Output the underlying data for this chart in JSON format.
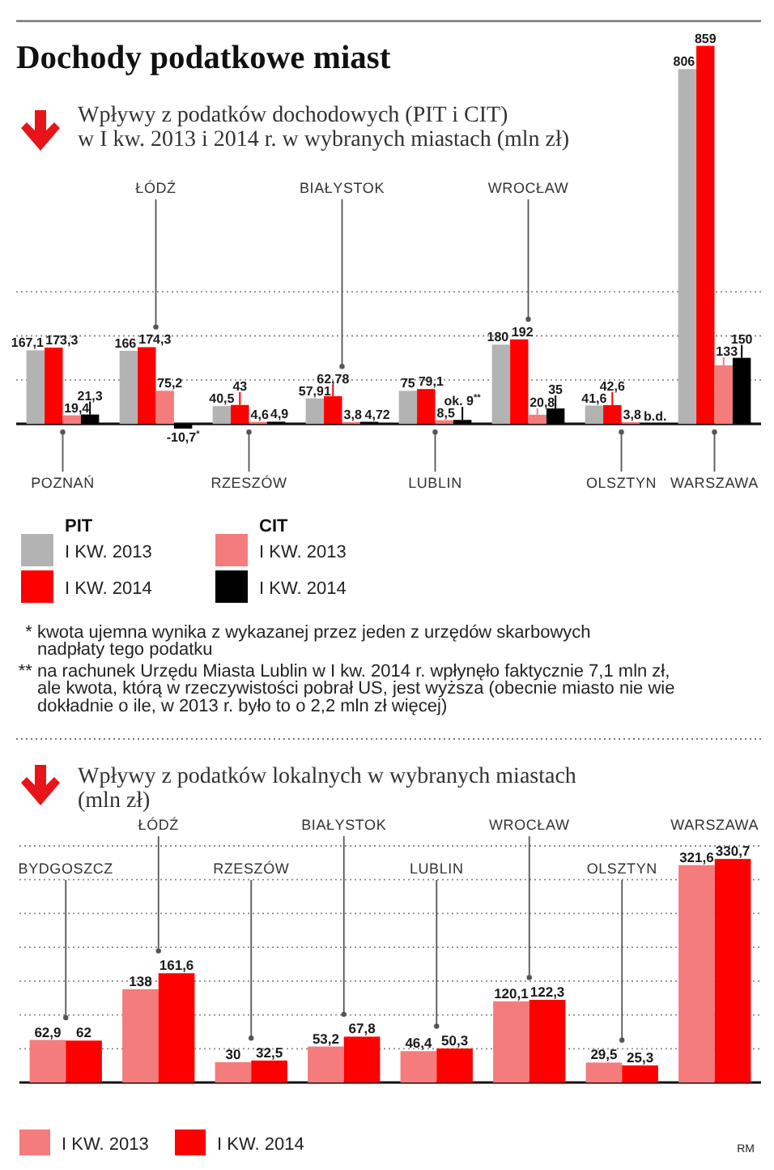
{
  "chart_data": [
    {
      "type": "bar",
      "title": "Dochody podatkowe miast",
      "subtitle": "Wpływy z podatków dochodowych (PIT i CIT)\nw I kw. 2013 i 2014 r. w wybranych miastach (mln zł)",
      "categories": [
        "POZNAŃ",
        "ŁÓDŹ",
        "RZESZÓW",
        "BIAŁYSTOK",
        "LUBLIN",
        "WROCŁAW",
        "OLSZTYN",
        "WARSZAWA"
      ],
      "series": [
        {
          "name": "I KW. 2013",
          "color": "#b3b3b3",
          "values": [
            167.1,
            166,
            40.5,
            57.91,
            75,
            180,
            41.6,
            806
          ],
          "value_labels": [
            "167,1",
            "166",
            "40,5",
            "57,91",
            "75",
            "180",
            "41,6",
            "806"
          ]
        },
        {
          "name": "I KW. 2014",
          "color": "#ff0000",
          "values": [
            173.3,
            174.3,
            43,
            62.78,
            79.1,
            192,
            42.6,
            859
          ],
          "value_labels": [
            "173,3",
            "174,3",
            "43",
            "62,78",
            "79,1",
            "192",
            "42,6",
            "859"
          ]
        },
        {
          "name": "I KW. 2013",
          "color": "#f47c7c",
          "values": [
            19.4,
            75.2,
            4.6,
            3.8,
            8.5,
            20.8,
            3.8,
            133
          ],
          "value_labels": [
            "19,4",
            "75,2",
            "4,6",
            "3,8",
            "8,5",
            "20,8",
            "3,8",
            "133"
          ]
        },
        {
          "name": "I KW. 2014",
          "color": "#000000",
          "values": [
            21.3,
            -10.7,
            4.9,
            4.72,
            9,
            35,
            null,
            150
          ],
          "value_labels": [
            "21,3",
            "-10,7$^{*}$",
            "4,9",
            "4,72",
            "ok. 9$^{**}$",
            "35",
            "b.d.",
            "150"
          ]
        }
      ],
      "ylim": [
        -20,
        860
      ],
      "yticks": [
        {
          "value": 100,
          "label": null
        },
        {
          "value": 200,
          "label": null
        },
        {
          "value": 300,
          "label": null
        }
      ],
      "grid": "y",
      "legend": "bottom",
      "tick_labels": "x",
      "annotations": [
        "PIT",
        "CIT",
        "* kwota ujemna wynika z wykazanej przez jeden z urzędów skarbowych\nnadpłaty tego podatku",
        "** na rachunek Urzędu Miasta Lublin w I kw. 2014 r. wpłynęło faktycznie 7,1 mln zł,\nale kwota, którą w rzeczywistości pobrał US, jest wyższa (obecnie miasto nie wie\ndokładnie o ile, w 2013 r. było to o 2,2 mln zł więcej)"
      ]
    },
    {
      "type": "bar",
      "subtitle": "Wpływy z podatków lokalnych w wybranych miastach\n(mln zł)",
      "categories": [
        "BYDGOSZCZ",
        "ŁÓDŹ",
        "RZESZÓW",
        "BIAŁYSTOK",
        "LUBLIN",
        "WROCŁAW",
        "OLSZTYN",
        "WARSZAWA"
      ],
      "series": [
        {
          "name": "I KW. 2013",
          "color": "#f47c7c",
          "values": [
            62.9,
            138,
            30,
            53.2,
            46.4,
            120.1,
            29.5,
            321.6
          ],
          "value_labels": [
            "62,9",
            "138",
            "30",
            "53,2",
            "46,4",
            "120,1",
            "29,5",
            "321,6"
          ]
        },
        {
          "name": "I KW. 2014",
          "color": "#ff0000",
          "values": [
            62,
            161.6,
            32.5,
            67.8,
            50.3,
            122.3,
            25.3,
            330.7
          ],
          "value_labels": [
            "62",
            "161,6",
            "32,5",
            "67,8",
            "50,3",
            "122,3",
            "25,3",
            "330,7"
          ]
        }
      ],
      "ylim": [
        0,
        350
      ],
      "yticks": [
        {
          "value": 50,
          "label": null
        },
        {
          "value": 100,
          "label": null
        },
        {
          "value": 150,
          "label": null
        },
        {
          "value": 200,
          "label": null
        },
        {
          "value": 250,
          "label": null
        },
        {
          "value": 300,
          "label": null
        },
        {
          "value": 350,
          "label": null
        }
      ],
      "grid": "y",
      "legend": "bottom",
      "tick_labels": "x",
      "annotations": [
        "RM"
      ]
    }
  ]
}
